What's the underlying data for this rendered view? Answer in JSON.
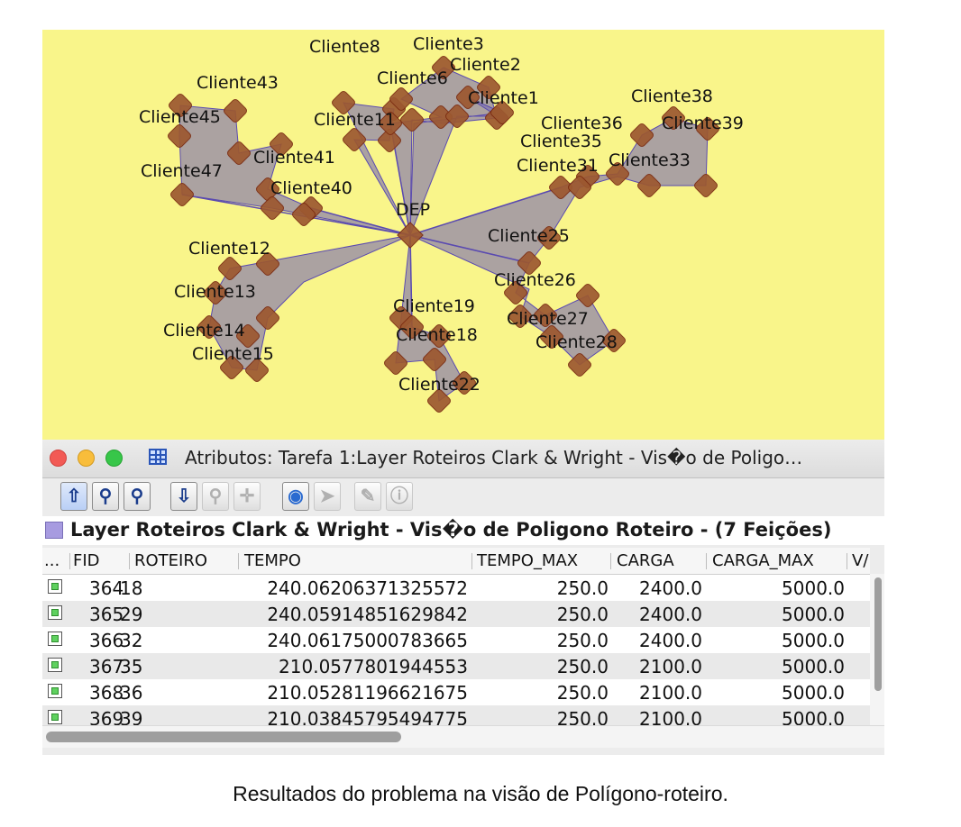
{
  "map": {
    "depot_label": "DEP",
    "client_labels": [
      "Cliente8",
      "Cliente3",
      "Cliente2",
      "Cliente6",
      "Cliente1",
      "Cliente43",
      "Cliente45",
      "Cliente11",
      "Cliente38",
      "Cliente36",
      "Cliente39",
      "Cliente35",
      "Cliente31",
      "Cliente33",
      "Cliente47",
      "Cliente41",
      "Cliente40",
      "Cliente25",
      "Cliente12",
      "Cliente26",
      "Cliente13",
      "Cliente19",
      "Cliente27",
      "Cliente18",
      "Cliente14",
      "Cliente28",
      "Cliente15",
      "Cliente22"
    ],
    "colors": {
      "background": "#f9f58a",
      "polygon": "#7b6fb0",
      "vertex": "#9c5830"
    }
  },
  "window": {
    "title": "Atributos: Tarefa 1:Layer Roteiros Clark & Wright - Vis�o de Poligo…",
    "toolbar_icons": [
      "move-up-icon",
      "zoom-to-selected-icon",
      "zoom-to-icon",
      "move-down-icon",
      "zoom-icon",
      "pan-icon",
      "globe-icon",
      "select-pointer-icon",
      "edit-pencil-icon",
      "info-icon"
    ],
    "layer_title": "Layer Roteiros Clark & Wright - Vis�o de Poligono Roteiro - (7 Feições)"
  },
  "table": {
    "columns": [
      "...",
      "FID",
      "ROTEIRO",
      "TEMPO",
      "TEMPO_MAX",
      "CARGA",
      "CARGA_MAX",
      "V/"
    ],
    "rows": [
      {
        "fid": "364",
        "roteiro": "18",
        "tempo": "240.06206371325572",
        "tempo_max": "250.0",
        "carga": "2400.0",
        "carga_max": "5000.0"
      },
      {
        "fid": "365",
        "roteiro": "29",
        "tempo": "240.05914851629842",
        "tempo_max": "250.0",
        "carga": "2400.0",
        "carga_max": "5000.0"
      },
      {
        "fid": "366",
        "roteiro": "32",
        "tempo": "240.06175000783665",
        "tempo_max": "250.0",
        "carga": "2400.0",
        "carga_max": "5000.0"
      },
      {
        "fid": "367",
        "roteiro": "35",
        "tempo": "210.0577801944553",
        "tempo_max": "250.0",
        "carga": "2100.0",
        "carga_max": "5000.0"
      },
      {
        "fid": "368",
        "roteiro": "36",
        "tempo": "210.05281196621675",
        "tempo_max": "250.0",
        "carga": "2100.0",
        "carga_max": "5000.0"
      },
      {
        "fid": "369",
        "roteiro": "39",
        "tempo": "210.03845795494775",
        "tempo_max": "250.0",
        "carga": "2100.0",
        "carga_max": "5000.0"
      }
    ]
  },
  "caption": "Resultados do problema na visão de Polígono-roteiro."
}
